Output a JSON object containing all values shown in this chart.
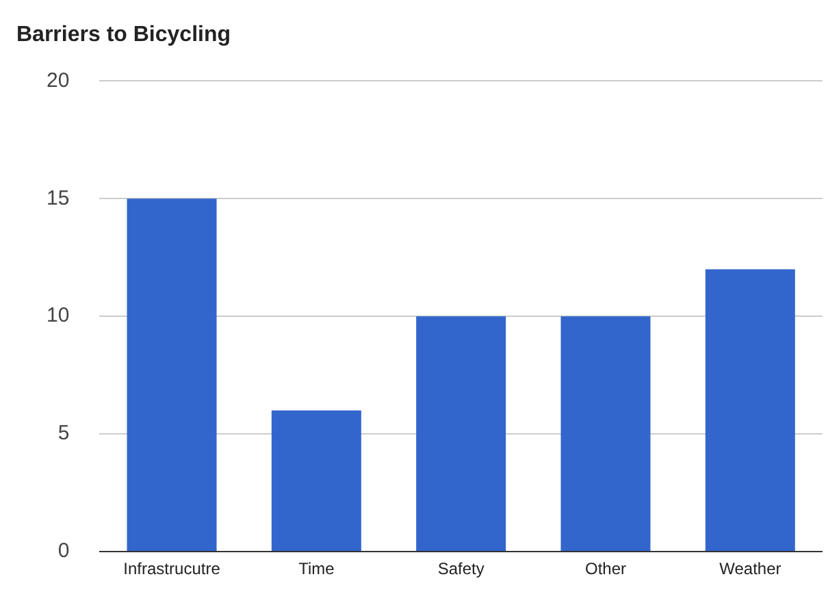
{
  "chart_data": {
    "type": "bar",
    "title": "Barriers to Bicycling",
    "categories": [
      "Infrastrucutre",
      "Time",
      "Safety",
      "Other",
      "Weather"
    ],
    "values": [
      15,
      6,
      10,
      10,
      12
    ],
    "color": "#3366cc",
    "ylim": [
      0,
      20
    ],
    "yticks": [
      0,
      5,
      10,
      15,
      20
    ],
    "grid": "y",
    "legend": false
  }
}
